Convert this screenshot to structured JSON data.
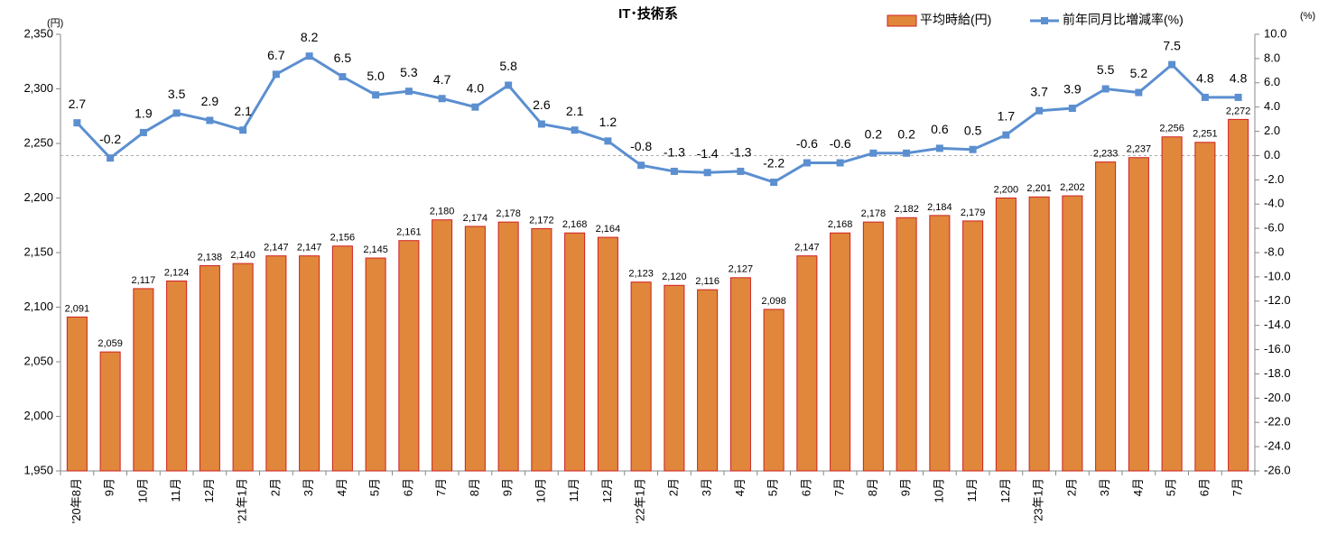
{
  "chart_data": {
    "type": "combo",
    "title": "IT･技術系",
    "y_unit": "(円)",
    "y2_unit": "(%)",
    "categories": [
      "'20年8月",
      "9月",
      "10月",
      "11月",
      "12月",
      "'21年1月",
      "2月",
      "3月",
      "4月",
      "5月",
      "6月",
      "7月",
      "8月",
      "9月",
      "10月",
      "11月",
      "12月",
      "'22年1月",
      "2月",
      "3月",
      "4月",
      "5月",
      "6月",
      "7月",
      "8月",
      "9月",
      "10月",
      "11月",
      "12月",
      "'23年1月",
      "2月",
      "3月",
      "4月",
      "5月",
      "6月",
      "7月"
    ],
    "series": [
      {
        "name": "平均時給(円)",
        "type": "bar",
        "color": "#e0873c",
        "edge_color": "#d02020",
        "values": [
          2091,
          2059,
          2117,
          2124,
          2138,
          2140,
          2147,
          2147,
          2156,
          2145,
          2161,
          2180,
          2174,
          2178,
          2172,
          2168,
          2164,
          2123,
          2120,
          2116,
          2127,
          2098,
          2147,
          2168,
          2178,
          2182,
          2184,
          2179,
          2200,
          2201,
          2202,
          2233,
          2237,
          2256,
          2251,
          2272
        ],
        "value_labels": [
          "2,091",
          "2,059",
          "2,117",
          "2,124",
          "2,138",
          "2,140",
          "2,147",
          "2,147",
          "2,156",
          "2,145",
          "2,161",
          "2,180",
          "2,174",
          "2,178",
          "2,172",
          "2,168",
          "2,164",
          "2,123",
          "2,120",
          "2,116",
          "2,127",
          "2,098",
          "2,147",
          "2,168",
          "2,178",
          "2,182",
          "2,184",
          "2,179",
          "2,200",
          "2,201",
          "2,202",
          "2,233",
          "2,237",
          "2,256",
          "2,251",
          "2,272"
        ]
      },
      {
        "name": "前年同月比増減率(%)",
        "type": "line",
        "axis": "y2",
        "color": "#5b8fd0",
        "values": [
          2.7,
          -0.2,
          1.9,
          3.5,
          2.9,
          2.1,
          6.7,
          8.2,
          6.5,
          5.0,
          5.3,
          4.7,
          4.0,
          5.8,
          2.6,
          2.1,
          1.2,
          -0.8,
          -1.3,
          -1.4,
          -1.3,
          -2.2,
          -0.6,
          -0.6,
          0.2,
          0.2,
          0.6,
          0.5,
          1.7,
          3.7,
          3.9,
          5.5,
          5.2,
          7.5,
          4.8,
          4.8
        ],
        "value_labels": [
          "2.7",
          "-0.2",
          "1.9",
          "3.5",
          "2.9",
          "2.1",
          "6.7",
          "8.2",
          "6.5",
          "5.0",
          "5.3",
          "4.7",
          "4.0",
          "5.8",
          "2.6",
          "2.1",
          "1.2",
          "-0.8",
          "-1.3",
          "-1.4",
          "-1.3",
          "-2.2",
          "-0.6",
          "-0.6",
          "0.2",
          "0.2",
          "0.6",
          "0.5",
          "1.7",
          "3.7",
          "3.9",
          "5.5",
          "5.2",
          "7.5",
          "4.8",
          "4.8"
        ]
      }
    ],
    "ylim": [
      1950,
      2350
    ],
    "yticks": [
      {
        "value": 1950,
        "label": "1,950"
      },
      {
        "value": 2000,
        "label": "2,000"
      },
      {
        "value": 2050,
        "label": "2,050"
      },
      {
        "value": 2100,
        "label": "2,100"
      },
      {
        "value": 2150,
        "label": "2,150"
      },
      {
        "value": 2200,
        "label": "2,200"
      },
      {
        "value": 2250,
        "label": "2,250"
      },
      {
        "value": 2300,
        "label": "2,300"
      },
      {
        "value": 2350,
        "label": "2,350"
      }
    ],
    "y2lim": [
      -26,
      10
    ],
    "y2ticks": [
      {
        "value": 10,
        "label": "10.0"
      },
      {
        "value": 8,
        "label": "8.0"
      },
      {
        "value": 6,
        "label": "6.0"
      },
      {
        "value": 4,
        "label": "4.0"
      },
      {
        "value": 2,
        "label": "2.0"
      },
      {
        "value": 0,
        "label": "0.0"
      },
      {
        "value": -2,
        "label": "-2.0"
      },
      {
        "value": -4,
        "label": "-4.0"
      },
      {
        "value": -6,
        "label": "-6.0"
      },
      {
        "value": -8,
        "label": "-8.0"
      },
      {
        "value": -10,
        "label": "-10.0"
      },
      {
        "value": -12,
        "label": "-12.0"
      },
      {
        "value": -14,
        "label": "-14.0"
      },
      {
        "value": -16,
        "label": "-16.0"
      },
      {
        "value": -18,
        "label": "-18.0"
      },
      {
        "value": -20,
        "label": "-20.0"
      },
      {
        "value": -22,
        "label": "-22.0"
      },
      {
        "value": -24,
        "label": "-24.0"
      },
      {
        "value": -26,
        "label": "-26.0"
      }
    ],
    "grid": false
  }
}
